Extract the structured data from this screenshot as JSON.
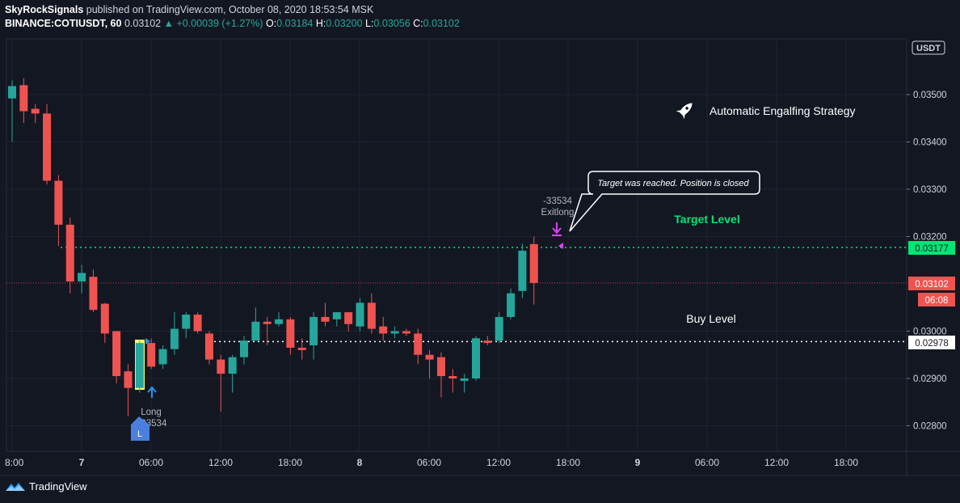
{
  "header": {
    "author": "SkyRockSignals",
    "published_text": "published on TradingView.com, October 08, 2020 18:53:54 MSK",
    "symbol": "BINANCE:COTIUSDT, 60",
    "last": "0.03102",
    "change": "▲ +0.00039 (+1.27%)",
    "open_label": "O:",
    "open": "0.03184",
    "high_label": "H:",
    "high": "0.03200",
    "low_label": "L:",
    "low": "0.03056",
    "close_label": "C:",
    "close": "0.03102"
  },
  "price_scale": {
    "currency": "USDT",
    "ticks": [
      "0.03500",
      "0.03400",
      "0.03300",
      "0.03200",
      "0.03000",
      "0.02900",
      "0.02800"
    ]
  },
  "time_axis": {
    "labels": [
      "8:00",
      "7",
      "06:00",
      "12:00",
      "18:00",
      "8",
      "06:00",
      "12:00",
      "18:00",
      "9",
      "06:00",
      "12:00",
      "18:00"
    ]
  },
  "annotations": {
    "strategy_title": "Automatic Engalfing Strategy",
    "target_level_label": "Target Level",
    "buy_level_label": "Buy Level",
    "callout": "Target was reached. Position is closed",
    "exit_qty": "-33534",
    "exit_name": "Exitlong",
    "entry_name": "Long",
    "entry_qty": "+33534",
    "entry_badge": "L"
  },
  "price_labels": {
    "target": "0.03177",
    "current": "0.03102",
    "countdown": "06:08",
    "buy": "0.02978"
  },
  "colors": {
    "up": "#26a69a",
    "down": "#ef5350",
    "target_line": "#00e676",
    "current_line": "#ef5350",
    "buy_line": "#ffffff",
    "highlight": "#ffff66",
    "exit_marker": "#e040fb",
    "entry_marker": "#2196f3",
    "background": "#131722"
  },
  "chart_data": {
    "type": "candlestick",
    "symbol": "BINANCE:COTIUSDT",
    "interval": "60",
    "ylim": [
      0.0275,
      0.0358
    ],
    "levels": {
      "target": 0.03177,
      "current": 0.03102,
      "buy": 0.02978
    },
    "candles": [
      {
        "o": 0.03492,
        "h": 0.0353,
        "l": 0.034,
        "c": 0.03518
      },
      {
        "o": 0.0352,
        "h": 0.03535,
        "l": 0.0344,
        "c": 0.03465
      },
      {
        "o": 0.0347,
        "h": 0.0348,
        "l": 0.0344,
        "c": 0.0346
      },
      {
        "o": 0.0346,
        "h": 0.0348,
        "l": 0.0331,
        "c": 0.03318
      },
      {
        "o": 0.03318,
        "h": 0.0333,
        "l": 0.0318,
        "c": 0.03225
      },
      {
        "o": 0.03225,
        "h": 0.0324,
        "l": 0.0308,
        "c": 0.03105
      },
      {
        "o": 0.03105,
        "h": 0.0314,
        "l": 0.0308,
        "c": 0.03123
      },
      {
        "o": 0.03115,
        "h": 0.0313,
        "l": 0.0304,
        "c": 0.03045
      },
      {
        "o": 0.03058,
        "h": 0.0306,
        "l": 0.02975,
        "c": 0.02995
      },
      {
        "o": 0.03,
        "h": 0.03,
        "l": 0.0289,
        "c": 0.02905
      },
      {
        "o": 0.02915,
        "h": 0.0293,
        "l": 0.0282,
        "c": 0.0288
      },
      {
        "o": 0.0288,
        "h": 0.0298,
        "l": 0.0287,
        "c": 0.02975
      },
      {
        "o": 0.02975,
        "h": 0.02985,
        "l": 0.0292,
        "c": 0.02925
      },
      {
        "o": 0.0293,
        "h": 0.0297,
        "l": 0.0292,
        "c": 0.02962
      },
      {
        "o": 0.02962,
        "h": 0.0304,
        "l": 0.0295,
        "c": 0.03005
      },
      {
        "o": 0.03005,
        "h": 0.0304,
        "l": 0.02985,
        "c": 0.03035
      },
      {
        "o": 0.03035,
        "h": 0.0304,
        "l": 0.02995,
        "c": 0.03
      },
      {
        "o": 0.02995,
        "h": 0.03,
        "l": 0.0293,
        "c": 0.0294
      },
      {
        "o": 0.0294,
        "h": 0.0295,
        "l": 0.0283,
        "c": 0.0291
      },
      {
        "o": 0.0291,
        "h": 0.0295,
        "l": 0.0287,
        "c": 0.02945
      },
      {
        "o": 0.02945,
        "h": 0.0299,
        "l": 0.0293,
        "c": 0.0298
      },
      {
        "o": 0.0298,
        "h": 0.0305,
        "l": 0.0298,
        "c": 0.0302
      },
      {
        "o": 0.0302,
        "h": 0.0303,
        "l": 0.0297,
        "c": 0.03015
      },
      {
        "o": 0.03015,
        "h": 0.0304,
        "l": 0.0301,
        "c": 0.03025
      },
      {
        "o": 0.03025,
        "h": 0.0303,
        "l": 0.0295,
        "c": 0.02965
      },
      {
        "o": 0.02965,
        "h": 0.02985,
        "l": 0.0294,
        "c": 0.0296
      },
      {
        "o": 0.0297,
        "h": 0.0304,
        "l": 0.0294,
        "c": 0.0303
      },
      {
        "o": 0.0303,
        "h": 0.0306,
        "l": 0.0301,
        "c": 0.0302
      },
      {
        "o": 0.03025,
        "h": 0.0304,
        "l": 0.0301,
        "c": 0.0304
      },
      {
        "o": 0.0304,
        "h": 0.0304,
        "l": 0.03,
        "c": 0.03015
      },
      {
        "o": 0.0301,
        "h": 0.0307,
        "l": 0.03,
        "c": 0.0306
      },
      {
        "o": 0.0306,
        "h": 0.0308,
        "l": 0.02995,
        "c": 0.03005
      },
      {
        "o": 0.0301,
        "h": 0.0303,
        "l": 0.0298,
        "c": 0.02995
      },
      {
        "o": 0.02995,
        "h": 0.0301,
        "l": 0.02985,
        "c": 0.03
      },
      {
        "o": 0.03,
        "h": 0.03005,
        "l": 0.0299,
        "c": 0.02995
      },
      {
        "o": 0.02995,
        "h": 0.03005,
        "l": 0.0293,
        "c": 0.0295
      },
      {
        "o": 0.0295,
        "h": 0.0296,
        "l": 0.029,
        "c": 0.0294
      },
      {
        "o": 0.02945,
        "h": 0.02955,
        "l": 0.0286,
        "c": 0.02905
      },
      {
        "o": 0.02905,
        "h": 0.0292,
        "l": 0.0287,
        "c": 0.029
      },
      {
        "o": 0.02895,
        "h": 0.0291,
        "l": 0.0287,
        "c": 0.029
      },
      {
        "o": 0.029,
        "h": 0.0299,
        "l": 0.02895,
        "c": 0.02985
      },
      {
        "o": 0.0298,
        "h": 0.0299,
        "l": 0.0297,
        "c": 0.02975
      },
      {
        "o": 0.0298,
        "h": 0.0304,
        "l": 0.02975,
        "c": 0.0303
      },
      {
        "o": 0.0303,
        "h": 0.0309,
        "l": 0.03025,
        "c": 0.0308
      },
      {
        "o": 0.03085,
        "h": 0.03185,
        "l": 0.0307,
        "c": 0.0317
      },
      {
        "o": 0.03184,
        "h": 0.032,
        "l": 0.03056,
        "c": 0.03102
      }
    ]
  }
}
